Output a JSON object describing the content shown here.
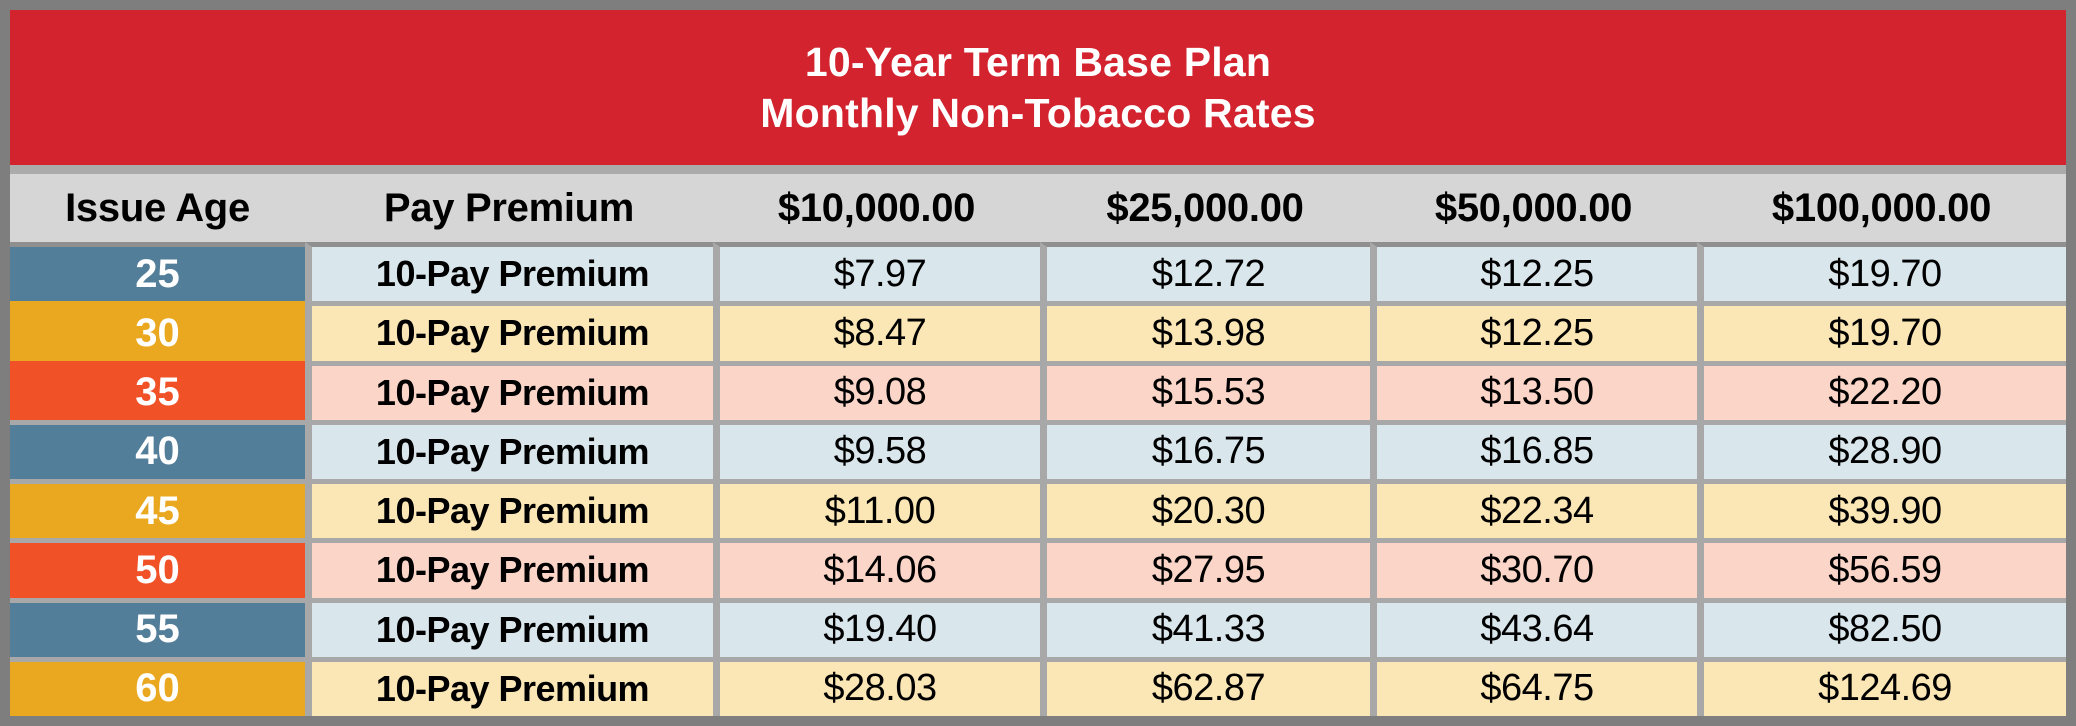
{
  "title": {
    "line1": "10-Year Term Base Plan",
    "line2": "Monthly Non-Tobacco Rates"
  },
  "columns": {
    "issue_age": "Issue Age",
    "pay_premium": "Pay Premium",
    "amounts": [
      "$10,000.00",
      "$25,000.00",
      "$50,000.00",
      "$100,000.00"
    ]
  },
  "rows": [
    {
      "age": "25",
      "premium_type": "10-Pay Premium",
      "theme": "blue",
      "rates": [
        "$7.97",
        "$12.72",
        "$12.25",
        "$19.70"
      ]
    },
    {
      "age": "30",
      "premium_type": "10-Pay Premium",
      "theme": "gold",
      "rates": [
        "$8.47",
        "$13.98",
        "$12.25",
        "$19.70"
      ]
    },
    {
      "age": "35",
      "premium_type": "10-Pay Premium",
      "theme": "red",
      "rates": [
        "$9.08",
        "$15.53",
        "$13.50",
        "$22.20"
      ]
    },
    {
      "age": "40",
      "premium_type": "10-Pay Premium",
      "theme": "blue",
      "rates": [
        "$9.58",
        "$16.75",
        "$16.85",
        "$28.90"
      ]
    },
    {
      "age": "45",
      "premium_type": "10-Pay Premium",
      "theme": "gold",
      "rates": [
        "$11.00",
        "$20.30",
        "$22.34",
        "$39.90"
      ]
    },
    {
      "age": "50",
      "premium_type": "10-Pay Premium",
      "theme": "red",
      "rates": [
        "$14.06",
        "$27.95",
        "$30.70",
        "$56.59"
      ]
    },
    {
      "age": "55",
      "premium_type": "10-Pay Premium",
      "theme": "blue",
      "rates": [
        "$19.40",
        "$41.33",
        "$43.64",
        "$82.50"
      ]
    },
    {
      "age": "60",
      "premium_type": "10-Pay Premium",
      "theme": "gold",
      "rates": [
        "$28.03",
        "$62.87",
        "$64.75",
        "$124.69"
      ]
    }
  ],
  "colors": {
    "header_red": "#D2232E",
    "header_gray": "#D6D6D6",
    "age_blue": "#537E99",
    "age_gold": "#E9A81F",
    "age_red": "#F05126",
    "cell_blue": "#D9E6EC",
    "cell_gold": "#FBE7B5",
    "cell_pink": "#FAD5C8",
    "grid_gray": "#A8A8A8",
    "border_gray": "#7E7E7E"
  }
}
